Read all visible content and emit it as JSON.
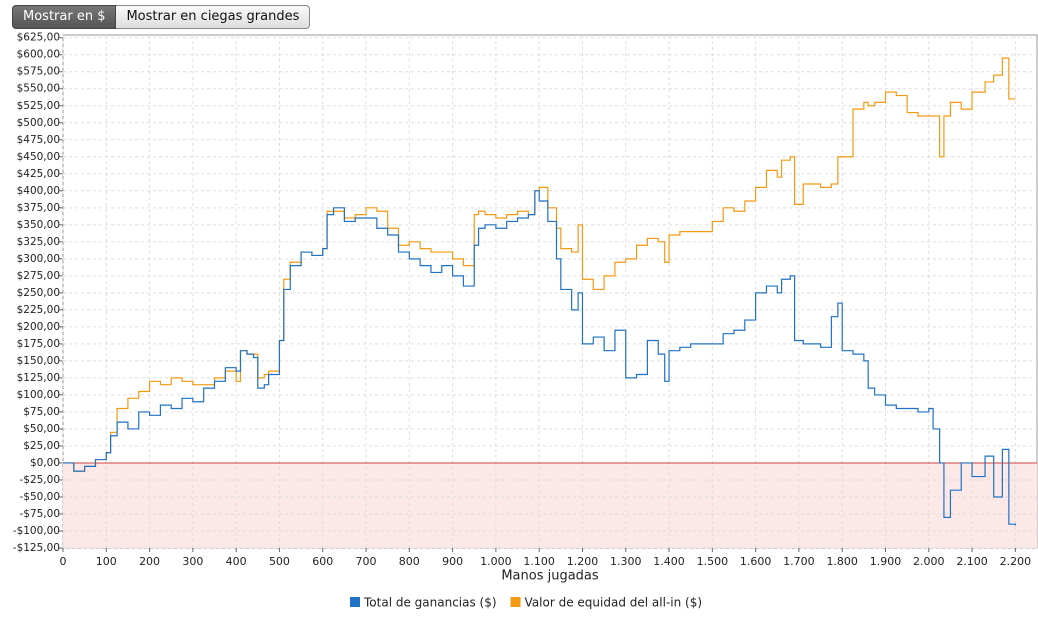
{
  "buttons": [
    "Mostrar en $",
    "Mostrar en ciegas grandes"
  ],
  "chart_data": {
    "type": "line",
    "x_label": "Manos jugadas",
    "xlim": [
      0,
      2250
    ],
    "ylim": [
      -125,
      629
    ],
    "xticks": [
      0,
      100,
      200,
      300,
      400,
      500,
      600,
      700,
      800,
      900,
      {
        "value": 1000,
        "label": "1.000"
      },
      {
        "value": 1100,
        "label": "1.100"
      },
      {
        "value": 1200,
        "label": "1.200"
      },
      {
        "value": 1300,
        "label": "1.300"
      },
      {
        "value": 1400,
        "label": "1.400"
      },
      {
        "value": 1500,
        "label": "1.500"
      },
      {
        "value": 1600,
        "label": "1.600"
      },
      {
        "value": 1700,
        "label": "1.700"
      },
      {
        "value": 1800,
        "label": "1.800"
      },
      {
        "value": 1900,
        "label": "1.900"
      },
      {
        "value": 2000,
        "label": "2.000"
      },
      {
        "value": 2100,
        "label": "2.100"
      },
      {
        "value": 2200,
        "label": "2.200"
      }
    ],
    "yticks": [
      {
        "value": -125,
        "label": "-$125,00"
      },
      {
        "value": -100,
        "label": "-$100,00"
      },
      {
        "value": -75,
        "label": "-$75,00"
      },
      {
        "value": -50,
        "label": "-$50,00"
      },
      {
        "value": -25,
        "label": "-$25,00"
      },
      {
        "value": 0,
        "label": "$0,00"
      },
      {
        "value": 25,
        "label": "$25,00"
      },
      {
        "value": 50,
        "label": "$50,00"
      },
      {
        "value": 75,
        "label": "$75,00"
      },
      {
        "value": 100,
        "label": "$100,00"
      },
      {
        "value": 125,
        "label": "$125,00"
      },
      {
        "value": 150,
        "label": "$150,00"
      },
      {
        "value": 175,
        "label": "$175,00"
      },
      {
        "value": 200,
        "label": "$200,00"
      },
      {
        "value": 225,
        "label": "$225,00"
      },
      {
        "value": 250,
        "label": "$250,00"
      },
      {
        "value": 275,
        "label": "$275,00"
      },
      {
        "value": 300,
        "label": "$300,00"
      },
      {
        "value": 325,
        "label": "$325,00"
      },
      {
        "value": 350,
        "label": "$350,00"
      },
      {
        "value": 375,
        "label": "$375,00"
      },
      {
        "value": 400,
        "label": "$400,00"
      },
      {
        "value": 425,
        "label": "$425,00"
      },
      {
        "value": 450,
        "label": "$450,00"
      },
      {
        "value": 475,
        "label": "$475,00"
      },
      {
        "value": 500,
        "label": "$500,00"
      },
      {
        "value": 525,
        "label": "$525,00"
      },
      {
        "value": 550,
        "label": "$550,00"
      },
      {
        "value": 575,
        "label": "$575,00"
      },
      {
        "value": 600,
        "label": "$600,00"
      },
      {
        "value": 625,
        "label": "$625,00"
      }
    ],
    "grid": true,
    "legend": "bottom",
    "x": [
      0,
      25,
      50,
      75,
      100,
      110,
      125,
      150,
      175,
      200,
      225,
      250,
      275,
      300,
      325,
      350,
      375,
      400,
      410,
      425,
      440,
      450,
      465,
      475,
      500,
      510,
      525,
      550,
      575,
      600,
      610,
      625,
      650,
      675,
      700,
      725,
      750,
      775,
      800,
      825,
      850,
      875,
      900,
      925,
      950,
      960,
      975,
      1000,
      1025,
      1050,
      1075,
      1090,
      1100,
      1120,
      1140,
      1150,
      1175,
      1190,
      1200,
      1225,
      1250,
      1275,
      1300,
      1325,
      1350,
      1375,
      1390,
      1400,
      1425,
      1450,
      1500,
      1525,
      1550,
      1575,
      1600,
      1625,
      1650,
      1660,
      1680,
      1690,
      1710,
      1750,
      1775,
      1790,
      1800,
      1825,
      1850,
      1860,
      1875,
      1900,
      1925,
      1950,
      1975,
      2000,
      2010,
      2025,
      2035,
      2050,
      2075,
      2100,
      2130,
      2150,
      2170,
      2185,
      2200
    ],
    "series": [
      {
        "name": "Total de ganancias ($)",
        "color": "#1f72c4",
        "values": [
          0,
          -12,
          -5,
          5,
          15,
          40,
          60,
          50,
          75,
          70,
          85,
          80,
          95,
          90,
          110,
          120,
          140,
          135,
          165,
          160,
          155,
          110,
          115,
          130,
          180,
          255,
          290,
          310,
          305,
          315,
          365,
          375,
          355,
          360,
          360,
          345,
          335,
          310,
          300,
          290,
          280,
          290,
          275,
          260,
          320,
          345,
          350,
          345,
          355,
          360,
          365,
          400,
          385,
          355,
          300,
          255,
          225,
          250,
          175,
          185,
          165,
          195,
          125,
          130,
          180,
          160,
          120,
          165,
          170,
          175,
          175,
          190,
          195,
          210,
          250,
          260,
          250,
          270,
          275,
          180,
          175,
          170,
          215,
          235,
          165,
          160,
          150,
          110,
          100,
          85,
          80,
          80,
          75,
          80,
          50,
          0,
          -80,
          -40,
          0,
          -20,
          10,
          -50,
          20,
          -90,
          -92
        ]
      },
      {
        "name": "Valor de equidad del all-in ($)",
        "color": "#f39a12",
        "values": [
          0,
          -12,
          -5,
          5,
          15,
          45,
          80,
          95,
          105,
          120,
          115,
          125,
          120,
          115,
          115,
          125,
          135,
          120,
          165,
          160,
          160,
          125,
          130,
          135,
          180,
          270,
          295,
          310,
          305,
          315,
          370,
          370,
          360,
          365,
          375,
          370,
          345,
          320,
          325,
          315,
          310,
          310,
          300,
          290,
          365,
          370,
          365,
          360,
          365,
          370,
          365,
          400,
          405,
          375,
          345,
          315,
          310,
          350,
          270,
          255,
          275,
          295,
          300,
          320,
          330,
          325,
          295,
          335,
          340,
          340,
          355,
          375,
          370,
          385,
          405,
          430,
          420,
          445,
          450,
          380,
          410,
          405,
          410,
          450,
          450,
          520,
          530,
          525,
          530,
          545,
          540,
          515,
          510,
          510,
          510,
          450,
          510,
          530,
          520,
          545,
          560,
          570,
          595,
          535,
          535
        ]
      }
    ]
  }
}
